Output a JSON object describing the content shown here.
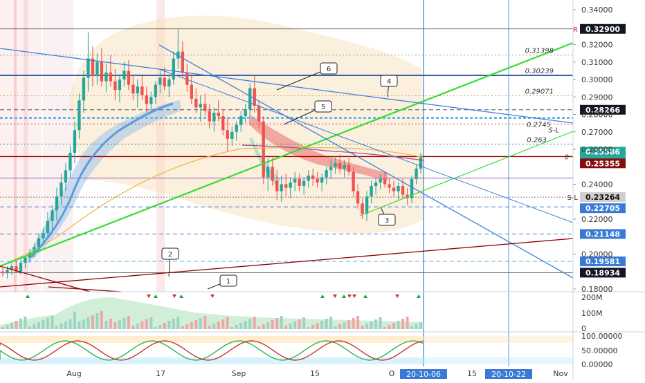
{
  "chart_data": {
    "type": "candlestick",
    "title": "",
    "y_axis": {
      "min": 0.18,
      "max": 0.34,
      "ticks": [
        "0.34000",
        "0.32000",
        "0.31000",
        "0.30000",
        "0.29000",
        "0.28000",
        "0.27000",
        "0.26000",
        "0.24000",
        "0.22000",
        "0.20000",
        "0.18000"
      ]
    },
    "x_axis": {
      "tick_labels": [
        "Aug",
        "17",
        "Sep",
        "15",
        "O",
        "15",
        "Nov"
      ],
      "highlight_labels": [
        "20-10-06",
        "20-10-22"
      ]
    },
    "price_tags": [
      {
        "value": "0.32900",
        "label": "R"
      },
      {
        "value": "0.28266"
      },
      {
        "value": "0.25586"
      },
      {
        "value": "20:44:20"
      },
      {
        "value": "0.25355"
      },
      {
        "value": "0.23264",
        "label": "S-L"
      },
      {
        "value": "0.22705"
      },
      {
        "value": "0.21148"
      },
      {
        "value": "0.19581"
      },
      {
        "value": "0.18934"
      }
    ],
    "level_labels": [
      {
        "value": "0.31398"
      },
      {
        "value": "0.30239"
      },
      {
        "value": "0.29071"
      },
      {
        "value": "0.2745"
      },
      {
        "value": "S-L"
      },
      {
        "value": "0.263"
      },
      {
        "value": "0"
      }
    ],
    "annotations": [
      "1",
      "2",
      "3",
      "4",
      "5",
      "6"
    ],
    "candles": [
      [
        0.19,
        0.192,
        0.187,
        0.189
      ],
      [
        0.189,
        0.193,
        0.186,
        0.191
      ],
      [
        0.191,
        0.195,
        0.188,
        0.193
      ],
      [
        0.193,
        0.196,
        0.189,
        0.19
      ],
      [
        0.19,
        0.197,
        0.188,
        0.195
      ],
      [
        0.195,
        0.199,
        0.192,
        0.198
      ],
      [
        0.198,
        0.203,
        0.195,
        0.201
      ],
      [
        0.201,
        0.206,
        0.198,
        0.204
      ],
      [
        0.204,
        0.212,
        0.201,
        0.209
      ],
      [
        0.209,
        0.215,
        0.205,
        0.212
      ],
      [
        0.212,
        0.224,
        0.209,
        0.219
      ],
      [
        0.219,
        0.228,
        0.214,
        0.225
      ],
      [
        0.225,
        0.238,
        0.219,
        0.233
      ],
      [
        0.233,
        0.246,
        0.228,
        0.241
      ],
      [
        0.241,
        0.252,
        0.236,
        0.248
      ],
      [
        0.248,
        0.262,
        0.244,
        0.258
      ],
      [
        0.258,
        0.276,
        0.252,
        0.271
      ],
      [
        0.271,
        0.292,
        0.266,
        0.288
      ],
      [
        0.288,
        0.305,
        0.281,
        0.301
      ],
      [
        0.301,
        0.327,
        0.293,
        0.312
      ],
      [
        0.312,
        0.319,
        0.296,
        0.302
      ],
      [
        0.302,
        0.315,
        0.297,
        0.31
      ],
      [
        0.31,
        0.318,
        0.296,
        0.299
      ],
      [
        0.299,
        0.309,
        0.293,
        0.304
      ],
      [
        0.304,
        0.314,
        0.296,
        0.299
      ],
      [
        0.299,
        0.306,
        0.288,
        0.294
      ],
      [
        0.294,
        0.303,
        0.287,
        0.3
      ],
      [
        0.3,
        0.31,
        0.296,
        0.305
      ],
      [
        0.305,
        0.311,
        0.294,
        0.297
      ],
      [
        0.297,
        0.303,
        0.288,
        0.292
      ],
      [
        0.292,
        0.3,
        0.284,
        0.296
      ],
      [
        0.296,
        0.302,
        0.288,
        0.291
      ],
      [
        0.291,
        0.296,
        0.281,
        0.286
      ],
      [
        0.286,
        0.293,
        0.281,
        0.29
      ],
      [
        0.29,
        0.299,
        0.286,
        0.297
      ],
      [
        0.297,
        0.305,
        0.292,
        0.301
      ],
      [
        0.301,
        0.307,
        0.294,
        0.296
      ],
      [
        0.296,
        0.303,
        0.29,
        0.3
      ],
      [
        0.3,
        0.316,
        0.297,
        0.312
      ],
      [
        0.312,
        0.329,
        0.306,
        0.316
      ],
      [
        0.316,
        0.322,
        0.301,
        0.304
      ],
      [
        0.304,
        0.309,
        0.293,
        0.297
      ],
      [
        0.297,
        0.302,
        0.286,
        0.289
      ],
      [
        0.289,
        0.295,
        0.281,
        0.284
      ],
      [
        0.284,
        0.291,
        0.276,
        0.286
      ],
      [
        0.286,
        0.292,
        0.279,
        0.282
      ],
      [
        0.282,
        0.286,
        0.272,
        0.276
      ],
      [
        0.276,
        0.284,
        0.27,
        0.281
      ],
      [
        0.281,
        0.288,
        0.276,
        0.279
      ],
      [
        0.279,
        0.283,
        0.268,
        0.271
      ],
      [
        0.271,
        0.278,
        0.259,
        0.266
      ],
      [
        0.266,
        0.273,
        0.262,
        0.27
      ],
      [
        0.27,
        0.276,
        0.265,
        0.274
      ],
      [
        0.274,
        0.282,
        0.27,
        0.279
      ],
      [
        0.279,
        0.286,
        0.275,
        0.283
      ],
      [
        0.283,
        0.298,
        0.28,
        0.295
      ],
      [
        0.295,
        0.302,
        0.281,
        0.285
      ],
      [
        0.285,
        0.288,
        0.272,
        0.276
      ],
      [
        0.276,
        0.279,
        0.24,
        0.244
      ],
      [
        0.244,
        0.255,
        0.236,
        0.25
      ],
      [
        0.25,
        0.255,
        0.239,
        0.242
      ],
      [
        0.242,
        0.248,
        0.231,
        0.236
      ],
      [
        0.236,
        0.245,
        0.23,
        0.24
      ],
      [
        0.24,
        0.246,
        0.233,
        0.238
      ],
      [
        0.238,
        0.244,
        0.232,
        0.241
      ],
      [
        0.241,
        0.247,
        0.236,
        0.243
      ],
      [
        0.243,
        0.246,
        0.236,
        0.239
      ],
      [
        0.239,
        0.244,
        0.234,
        0.242
      ],
      [
        0.242,
        0.248,
        0.238,
        0.245
      ],
      [
        0.245,
        0.249,
        0.239,
        0.243
      ],
      [
        0.243,
        0.247,
        0.238,
        0.241
      ],
      [
        0.241,
        0.246,
        0.236,
        0.244
      ],
      [
        0.244,
        0.25,
        0.24,
        0.248
      ],
      [
        0.248,
        0.254,
        0.243,
        0.25
      ],
      [
        0.25,
        0.256,
        0.246,
        0.252
      ],
      [
        0.252,
        0.257,
        0.246,
        0.249
      ],
      [
        0.249,
        0.254,
        0.244,
        0.251
      ],
      [
        0.251,
        0.255,
        0.245,
        0.247
      ],
      [
        0.247,
        0.25,
        0.233,
        0.236
      ],
      [
        0.236,
        0.24,
        0.226,
        0.229
      ],
      [
        0.229,
        0.232,
        0.22,
        0.223
      ],
      [
        0.223,
        0.236,
        0.219,
        0.233
      ],
      [
        0.233,
        0.242,
        0.229,
        0.239
      ],
      [
        0.239,
        0.244,
        0.234,
        0.241
      ],
      [
        0.241,
        0.246,
        0.237,
        0.243
      ],
      [
        0.243,
        0.247,
        0.238,
        0.24
      ],
      [
        0.24,
        0.244,
        0.235,
        0.238
      ],
      [
        0.238,
        0.242,
        0.233,
        0.236
      ],
      [
        0.236,
        0.241,
        0.231,
        0.239
      ],
      [
        0.239,
        0.243,
        0.232,
        0.234
      ],
      [
        0.234,
        0.238,
        0.228,
        0.232
      ],
      [
        0.232,
        0.245,
        0.229,
        0.243
      ],
      [
        0.243,
        0.251,
        0.24,
        0.249
      ],
      [
        0.249,
        0.258,
        0.246,
        0.256
      ]
    ],
    "volume_axis": [
      "200M",
      "100M",
      "0"
    ],
    "oscillator_axis": [
      "100.00000",
      "50.00000",
      "0.00000"
    ],
    "colors": {
      "up": "#26a69a",
      "down": "#ef5350",
      "green_line": "#33dd33",
      "blue_line": "#3f7fdc",
      "red_line": "#8b0000",
      "dark_tag": "#131722",
      "teal_tag": "#26a69a",
      "red_tag": "#880e0e",
      "blue_tag": "#3a79d5"
    }
  }
}
